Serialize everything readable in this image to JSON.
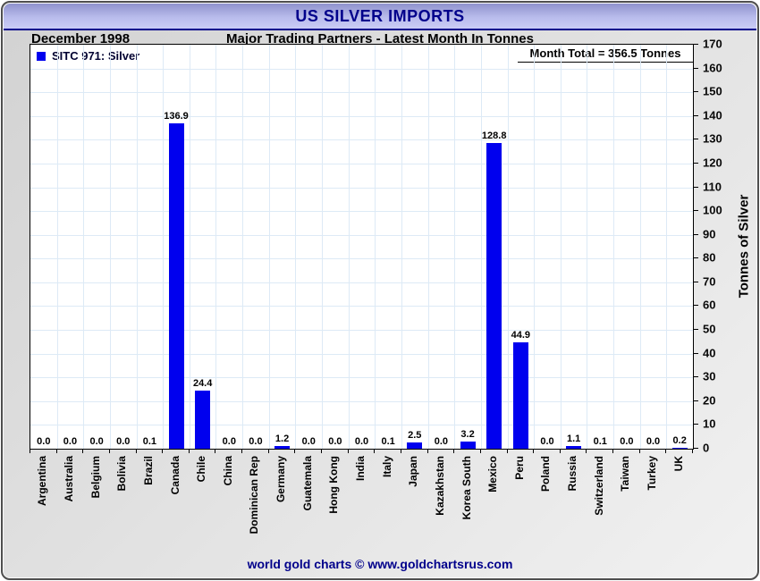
{
  "header": {
    "title": "US SILVER IMPORTS",
    "date_label": "December 1998",
    "subtitle": "Major Trading Partners - Latest Month In Tonnes"
  },
  "legend": {
    "label": "SITC 971: Silver",
    "swatch_color": "#0000ee"
  },
  "annotation": {
    "month_total": "Month Total = 356.5 Tonnes"
  },
  "chart_data": {
    "type": "bar",
    "title": "US SILVER IMPORTS",
    "subtitle": "Major Trading Partners - Latest Month In Tonnes",
    "period": "December 1998",
    "categories": [
      "Argentina",
      "Australia",
      "Belgium",
      "Bolivia",
      "Brazil",
      "Canada",
      "Chile",
      "China",
      "Dominican Rep",
      "Germany",
      "Guatemala",
      "Hong Kong",
      "India",
      "Italy",
      "Japan",
      "Kazakhstan",
      "Korea South",
      "Mexico",
      "Peru",
      "Poland",
      "Russia",
      "Switzerland",
      "Taiwan",
      "Turkey",
      "UK"
    ],
    "values": [
      0.0,
      0.0,
      0.0,
      0.0,
      0.1,
      136.9,
      24.4,
      0.0,
      0.0,
      1.2,
      0.0,
      0.0,
      0.0,
      0.1,
      2.5,
      0.0,
      3.2,
      128.8,
      44.9,
      0.0,
      1.1,
      0.1,
      0.0,
      0.0,
      0.2
    ],
    "series_name": "SITC 971: Silver",
    "xlabel": "",
    "ylabel": "Tonnes of Silver",
    "ylim": [
      0,
      170
    ],
    "ytick_step": 10,
    "value_label_decimals": 1,
    "grid": "both",
    "legend_position": "top-left",
    "bar_color": "#0000ee"
  },
  "footer": {
    "text": "world gold charts © www.goldchartsrus.com"
  },
  "colors": {
    "title_text": "#00008b",
    "titlebar_top": "#8f92cd",
    "titlebar_bottom": "#caccf5",
    "bar": "#0000ee",
    "gridline": "#ddeaf6",
    "footer_text": "#00008b",
    "frame_background": "#e0e0e0"
  }
}
